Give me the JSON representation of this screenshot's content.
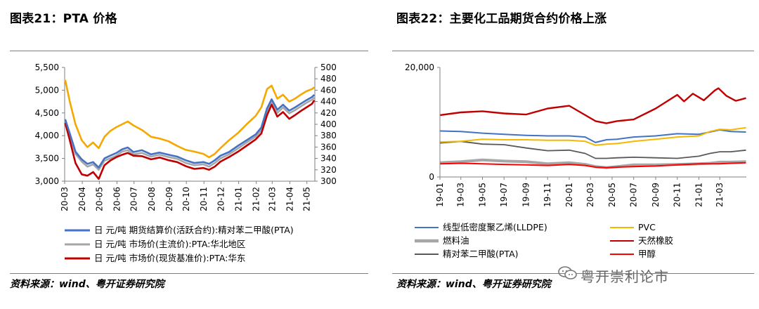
{
  "left": {
    "title": "图表21：PTA 价格",
    "source": "资料来源：wind、粤开证券研究院"
  },
  "right": {
    "title": "图表22：主要化工品期货合约价格上涨",
    "source": "资料来源：wind、粤开证券研究院",
    "watermark": "粤开崇利论市"
  },
  "chart_data": [
    {
      "type": "line",
      "title": "",
      "xlabel": "",
      "ylabel": "",
      "x_ticks": [
        "20-03",
        "20-04",
        "20-05",
        "20-06",
        "20-07",
        "20-08",
        "20-09",
        "20-10",
        "20-11",
        "20-12",
        "21-01",
        "21-02",
        "21-03",
        "21-04",
        "21-05"
      ],
      "x_range": [
        "2020-03-01",
        "2021-05-15"
      ],
      "ylim": [
        3000,
        5500
      ],
      "y_ticks": [
        "3,000",
        "3,500",
        "4,000",
        "4,500",
        "5,000",
        "5,500"
      ],
      "y2lim": [
        300,
        500
      ],
      "y2_ticks": [
        "300",
        "320",
        "340",
        "360",
        "380",
        "400",
        "420",
        "440",
        "460",
        "480",
        "500"
      ],
      "grid": false,
      "legend_position": "bottom",
      "series": [
        {
          "name": "日 元/吨 期货结算价(活跃合约):精对苯二甲酸(PTA)",
          "axis": "left",
          "color": "#4472c4",
          "x": [
            "2020-03-02",
            "2020-03-10",
            "2020-03-20",
            "2020-03-31",
            "2020-04-10",
            "2020-04-20",
            "2020-04-30",
            "2020-05-10",
            "2020-05-20",
            "2020-05-31",
            "2020-06-10",
            "2020-06-20",
            "2020-06-30",
            "2020-07-15",
            "2020-07-31",
            "2020-08-15",
            "2020-08-31",
            "2020-09-15",
            "2020-09-30",
            "2020-10-15",
            "2020-10-31",
            "2020-11-10",
            "2020-11-20",
            "2020-11-30",
            "2020-12-15",
            "2020-12-31",
            "2021-01-15",
            "2021-01-31",
            "2021-02-10",
            "2021-02-20",
            "2021-02-28",
            "2021-03-10",
            "2021-03-20",
            "2021-03-31",
            "2021-04-10",
            "2021-04-20",
            "2021-04-30",
            "2021-05-10",
            "2021-05-14"
          ],
          "values": [
            4360,
            4050,
            3650,
            3480,
            3380,
            3420,
            3300,
            3500,
            3560,
            3620,
            3700,
            3740,
            3640,
            3680,
            3590,
            3630,
            3580,
            3540,
            3460,
            3400,
            3420,
            3380,
            3460,
            3560,
            3640,
            3780,
            3900,
            4030,
            4180,
            4600,
            4800,
            4570,
            4680,
            4550,
            4620,
            4700,
            4780,
            4850,
            4900
          ]
        },
        {
          "name": "日 元/吨 市场价(主流价):PTA:华北地区",
          "axis": "left",
          "color": "#a6a6a6",
          "x": [
            "2020-03-02",
            "2020-03-10",
            "2020-03-20",
            "2020-03-31",
            "2020-04-10",
            "2020-04-20",
            "2020-04-30",
            "2020-05-10",
            "2020-05-20",
            "2020-05-31",
            "2020-06-10",
            "2020-06-20",
            "2020-06-30",
            "2020-07-15",
            "2020-07-31",
            "2020-08-15",
            "2020-08-31",
            "2020-09-15",
            "2020-09-30",
            "2020-10-15",
            "2020-10-31",
            "2020-11-10",
            "2020-11-20",
            "2020-11-30",
            "2020-12-15",
            "2020-12-31",
            "2021-01-15",
            "2021-01-31",
            "2021-02-10",
            "2021-02-20",
            "2021-02-28",
            "2021-03-10",
            "2021-03-20",
            "2021-03-31",
            "2021-04-10",
            "2021-04-20",
            "2021-04-30",
            "2021-05-10",
            "2021-05-14"
          ],
          "values": [
            4330,
            4000,
            3600,
            3430,
            3320,
            3370,
            3250,
            3450,
            3500,
            3560,
            3650,
            3680,
            3590,
            3620,
            3540,
            3580,
            3530,
            3490,
            3400,
            3350,
            3370,
            3320,
            3400,
            3500,
            3590,
            3720,
            3850,
            3980,
            4120,
            4540,
            4750,
            4500,
            4620,
            4490,
            4560,
            4640,
            4720,
            4790,
            4840
          ]
        },
        {
          "name": "日 元/吨 市场价(现货基准价):PTA:华东",
          "axis": "left",
          "color": "#c00000",
          "x": [
            "2020-03-02",
            "2020-03-10",
            "2020-03-20",
            "2020-03-31",
            "2020-04-10",
            "2020-04-20",
            "2020-04-30",
            "2020-05-10",
            "2020-05-20",
            "2020-05-31",
            "2020-06-10",
            "2020-06-20",
            "2020-06-30",
            "2020-07-15",
            "2020-07-31",
            "2020-08-15",
            "2020-08-31",
            "2020-09-15",
            "2020-09-30",
            "2020-10-15",
            "2020-10-31",
            "2020-11-10",
            "2020-11-20",
            "2020-11-30",
            "2020-12-15",
            "2020-12-31",
            "2021-01-15",
            "2021-01-31",
            "2021-02-10",
            "2021-02-20",
            "2021-02-28",
            "2021-03-10",
            "2021-03-20",
            "2021-03-31",
            "2021-04-10",
            "2021-04-20",
            "2021-04-30",
            "2021-05-10",
            "2021-05-14"
          ],
          "values": [
            4280,
            3900,
            3400,
            3150,
            3120,
            3200,
            3050,
            3350,
            3450,
            3530,
            3580,
            3620,
            3560,
            3550,
            3480,
            3520,
            3460,
            3420,
            3330,
            3270,
            3290,
            3250,
            3320,
            3430,
            3530,
            3650,
            3780,
            3920,
            4050,
            4450,
            4680,
            4420,
            4520,
            4370,
            4450,
            4540,
            4620,
            4700,
            4780
          ]
        },
        {
          "name": "",
          "axis": "right",
          "color": "#f5a800",
          "x": [
            "2020-03-02",
            "2020-03-10",
            "2020-03-20",
            "2020-03-31",
            "2020-04-10",
            "2020-04-20",
            "2020-04-30",
            "2020-05-10",
            "2020-05-20",
            "2020-05-31",
            "2020-06-10",
            "2020-06-20",
            "2020-06-30",
            "2020-07-15",
            "2020-07-31",
            "2020-08-15",
            "2020-08-31",
            "2020-09-15",
            "2020-09-30",
            "2020-10-15",
            "2020-10-31",
            "2020-11-10",
            "2020-11-20",
            "2020-11-30",
            "2020-12-15",
            "2020-12-31",
            "2021-01-15",
            "2021-01-31",
            "2021-02-10",
            "2021-02-20",
            "2021-02-28",
            "2021-03-10",
            "2021-03-20",
            "2021-03-31",
            "2021-04-10",
            "2021-04-20",
            "2021-04-30",
            "2021-05-10",
            "2021-05-14"
          ],
          "values": [
            478,
            440,
            400,
            372,
            360,
            368,
            358,
            378,
            388,
            395,
            400,
            405,
            398,
            390,
            378,
            375,
            370,
            362,
            355,
            352,
            348,
            342,
            348,
            358,
            372,
            385,
            400,
            415,
            430,
            462,
            468,
            445,
            452,
            440,
            445,
            452,
            458,
            462,
            465
          ]
        }
      ]
    },
    {
      "type": "line",
      "title": "",
      "xlabel": "",
      "ylabel": "",
      "x_ticks": [
        "19-01",
        "19-03",
        "19-05",
        "19-07",
        "19-09",
        "19-11",
        "20-01",
        "20-03",
        "20-05",
        "20-07",
        "20-09",
        "20-11",
        "21-01",
        "21-03"
      ],
      "x_range": [
        "2019-01-01",
        "2021-05-15"
      ],
      "ylim": [
        0,
        20000
      ],
      "y_ticks": [
        "0",
        "20,000"
      ],
      "grid": false,
      "legend_position": "bottom",
      "series": [
        {
          "name": "线型低密度聚乙烯(LLDPE)",
          "color": "#4472c4",
          "x": [
            "2019-01-02",
            "2019-03-01",
            "2019-05-01",
            "2019-07-01",
            "2019-09-01",
            "2019-11-01",
            "2020-01-01",
            "2020-02-15",
            "2020-03-15",
            "2020-04-15",
            "2020-05-15",
            "2020-07-01",
            "2020-09-01",
            "2020-11-01",
            "2021-01-01",
            "2021-02-01",
            "2021-03-01",
            "2021-04-01",
            "2021-05-14"
          ],
          "values": [
            8400,
            8300,
            8000,
            7800,
            7600,
            7500,
            7500,
            7300,
            6300,
            6800,
            6900,
            7300,
            7500,
            7900,
            7800,
            8200,
            8600,
            8300,
            8200
          ]
        },
        {
          "name": "PVC",
          "color": "#f5b800",
          "x": [
            "2019-01-02",
            "2019-03-01",
            "2019-05-01",
            "2019-07-01",
            "2019-09-01",
            "2019-11-01",
            "2020-01-01",
            "2020-02-15",
            "2020-03-15",
            "2020-04-15",
            "2020-05-15",
            "2020-07-01",
            "2020-09-01",
            "2020-11-01",
            "2021-01-01",
            "2021-02-01",
            "2021-03-01",
            "2021-04-01",
            "2021-05-14"
          ],
          "values": [
            6400,
            6500,
            6900,
            6800,
            6800,
            6700,
            6700,
            6500,
            5800,
            6000,
            6100,
            6500,
            6900,
            7300,
            7500,
            8300,
            8700,
            8600,
            9000
          ]
        },
        {
          "name": "燃料油",
          "color": "#a6a6a6",
          "x": [
            "2019-01-02",
            "2019-03-01",
            "2019-05-01",
            "2019-07-01",
            "2019-09-01",
            "2019-11-01",
            "2020-01-01",
            "2020-02-15",
            "2020-03-15",
            "2020-04-15",
            "2020-05-15",
            "2020-07-01",
            "2020-09-01",
            "2020-11-01",
            "2021-01-01",
            "2021-02-01",
            "2021-03-01",
            "2021-04-01",
            "2021-05-14"
          ],
          "values": [
            2600,
            2800,
            3100,
            2900,
            2800,
            2400,
            2600,
            2300,
            1900,
            1700,
            1900,
            2200,
            2200,
            2300,
            2400,
            2500,
            2700,
            2700,
            2800
          ]
        },
        {
          "name": "天然橡胶",
          "color": "#c00000",
          "x": [
            "2019-01-02",
            "2019-03-01",
            "2019-05-01",
            "2019-07-01",
            "2019-09-01",
            "2019-11-01",
            "2020-01-01",
            "2020-02-15",
            "2020-03-15",
            "2020-04-15",
            "2020-05-15",
            "2020-07-01",
            "2020-09-01",
            "2020-11-01",
            "2020-11-20",
            "2020-12-15",
            "2021-01-15",
            "2021-02-15",
            "2021-02-25",
            "2021-03-20",
            "2021-04-15",
            "2021-05-14"
          ],
          "values": [
            11300,
            11800,
            12000,
            11600,
            11400,
            12500,
            13000,
            11300,
            10200,
            9800,
            10200,
            10500,
            12500,
            15000,
            13800,
            15200,
            14000,
            15800,
            16200,
            14800,
            13900,
            14400
          ]
        },
        {
          "name": "精对苯二甲酸(PTA)",
          "color": "#595959",
          "x": [
            "2019-01-02",
            "2019-03-01",
            "2019-05-01",
            "2019-07-01",
            "2019-09-01",
            "2019-11-01",
            "2020-01-01",
            "2020-02-15",
            "2020-03-15",
            "2020-04-15",
            "2020-05-15",
            "2020-07-01",
            "2020-09-01",
            "2020-11-01",
            "2021-01-01",
            "2021-02-01",
            "2021-03-01",
            "2021-04-01",
            "2021-05-14"
          ],
          "values": [
            6200,
            6500,
            6000,
            5900,
            5300,
            4800,
            4900,
            4300,
            3400,
            3400,
            3500,
            3600,
            3500,
            3400,
            3800,
            4300,
            4600,
            4600,
            4900
          ]
        },
        {
          "name": "甲醇",
          "color": "#ff0000",
          "x": [
            "2019-01-02",
            "2019-03-01",
            "2019-05-01",
            "2019-07-01",
            "2019-09-01",
            "2019-11-01",
            "2020-01-01",
            "2020-02-15",
            "2020-03-15",
            "2020-04-15",
            "2020-05-15",
            "2020-07-01",
            "2020-09-01",
            "2020-11-01",
            "2021-01-01",
            "2021-02-01",
            "2021-03-01",
            "2021-04-01",
            "2021-05-14"
          ],
          "values": [
            2400,
            2500,
            2400,
            2300,
            2200,
            2100,
            2300,
            2100,
            1800,
            1700,
            1800,
            1900,
            2000,
            2200,
            2400,
            2400,
            2400,
            2500,
            2600
          ]
        }
      ]
    }
  ]
}
